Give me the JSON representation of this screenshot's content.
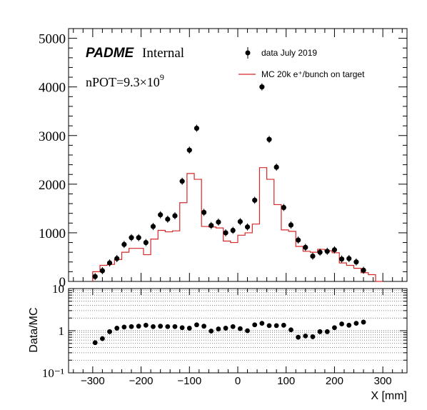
{
  "chart_data": [
    {
      "type": "scatter",
      "panel": "main",
      "xlim": [
        -350,
        350
      ],
      "ylim": [
        0,
        5200
      ],
      "yticks": [
        0,
        1000,
        2000,
        3000,
        4000,
        5000
      ],
      "ytick_labels": [
        "0",
        "1000",
        "2000",
        "3000",
        "4000",
        "5000"
      ],
      "series": [
        {
          "name": "data July 2019",
          "style": "markers",
          "color": "#000000",
          "x": [
            -295,
            -280,
            -265,
            -250,
            -235,
            -220,
            -205,
            -190,
            -175,
            -160,
            -145,
            -130,
            -115,
            -100,
            -85,
            -70,
            -55,
            -40,
            -25,
            -10,
            5,
            20,
            35,
            50,
            65,
            80,
            95,
            110,
            125,
            140,
            155,
            170,
            185,
            200,
            215,
            230,
            245,
            260,
            275,
            290
          ],
          "y": [
            100,
            220,
            380,
            470,
            760,
            900,
            900,
            800,
            1130,
            1370,
            1280,
            1350,
            2060,
            2700,
            3150,
            1420,
            1150,
            1220,
            1000,
            1050,
            1230,
            1120,
            1670,
            4000,
            2920,
            2350,
            1520,
            1160,
            850,
            700,
            520,
            600,
            620,
            650,
            460,
            470,
            400,
            230,
            0,
            0
          ]
        },
        {
          "name": "MC 20k e⁺/bunch on target",
          "style": "step",
          "color": "#d62728",
          "edges": [
            -300,
            -285,
            -270,
            -255,
            -240,
            -225,
            -210,
            -195,
            -180,
            -165,
            -150,
            -135,
            -120,
            -105,
            -90,
            -75,
            -60,
            -45,
            -30,
            -15,
            0,
            15,
            30,
            45,
            60,
            75,
            90,
            105,
            120,
            135,
            150,
            165,
            180,
            195,
            210,
            225,
            240,
            255,
            270,
            285,
            300
          ],
          "values": [
            200,
            330,
            350,
            450,
            600,
            680,
            680,
            550,
            870,
            1050,
            1020,
            1040,
            1620,
            2220,
            2100,
            1130,
            1120,
            1100,
            830,
            800,
            950,
            1000,
            1180,
            2340,
            2100,
            1580,
            1060,
            1030,
            720,
            620,
            600,
            660,
            630,
            590,
            380,
            330,
            270,
            180,
            140,
            0
          ]
        }
      ],
      "legend": {
        "placement": "top-right",
        "entries": [
          "data July 2019",
          "MC 20k e⁺/bunch on target"
        ]
      },
      "annotations": {
        "brand_italic": "PADME",
        "brand_suffix": "Internal",
        "npot_prefix": "nPOT=9.3×10",
        "npot_exponent": "9"
      }
    },
    {
      "type": "scatter",
      "panel": "ratio",
      "ylabel": "Data/MC",
      "xlabel": "X [mm]",
      "xlim": [
        -350,
        350
      ],
      "ylim": [
        0.1,
        10
      ],
      "log_y": true,
      "xticks": [
        -300,
        -200,
        -100,
        0,
        100,
        200,
        300
      ],
      "xtick_labels": [
        "−300",
        "−200",
        "−100",
        "0",
        "100",
        "200",
        "300"
      ],
      "ytick_labels": [
        "10⁻¹",
        "1",
        "10"
      ],
      "series": [
        {
          "name": "",
          "color": "#000000",
          "x": [
            -295,
            -280,
            -265,
            -250,
            -235,
            -220,
            -205,
            -190,
            -175,
            -160,
            -145,
            -130,
            -115,
            -100,
            -85,
            -70,
            -55,
            -40,
            -25,
            -10,
            5,
            20,
            35,
            50,
            65,
            80,
            95,
            110,
            125,
            140,
            155,
            170,
            185,
            200,
            215,
            230,
            245,
            260,
            275,
            290
          ],
          "y": [
            0.52,
            0.65,
            0.95,
            1.15,
            1.22,
            1.25,
            1.28,
            1.35,
            1.25,
            1.28,
            1.25,
            1.25,
            1.18,
            1.15,
            1.38,
            1.28,
            0.98,
            1.1,
            1.15,
            1.25,
            1.12,
            1.0,
            1.38,
            1.5,
            1.32,
            1.32,
            1.35,
            1.05,
            0.7,
            0.75,
            0.72,
            0.95,
            0.95,
            1.18,
            1.45,
            1.35,
            1.5,
            1.6,
            0,
            0
          ]
        }
      ]
    }
  ]
}
